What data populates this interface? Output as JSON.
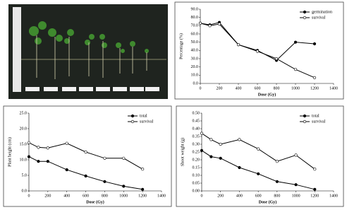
{
  "chart_data": [
    {
      "type": "line",
      "ylabel": "Percentage (%)",
      "xlabel": "Dose (Gy)",
      "x": [
        0,
        100,
        200,
        400,
        600,
        800,
        1000,
        1200
      ],
      "series": [
        {
          "name": "germination",
          "color": "#000000",
          "marker": "filled",
          "values": [
            73,
            71,
            74,
            47,
            40,
            28,
            50,
            48
          ]
        },
        {
          "name": "survival",
          "color": "#000000",
          "marker": "open",
          "values": [
            73,
            70,
            72,
            47,
            39,
            30,
            17,
            7
          ]
        }
      ],
      "xlim": [
        0,
        1400
      ],
      "xticks": [
        0,
        200,
        400,
        600,
        800,
        1000,
        1200,
        1400
      ],
      "ylim": [
        0,
        90
      ],
      "yticks": [
        {
          "value": 0,
          "label": "0.0"
        },
        {
          "value": 10,
          "label": "10.0"
        },
        {
          "value": 20,
          "label": "20.0"
        },
        {
          "value": 30,
          "label": "30.0"
        },
        {
          "value": 40,
          "label": "40.0"
        },
        {
          "value": 50,
          "label": "50.0"
        },
        {
          "value": 60,
          "label": "60.0"
        },
        {
          "value": 70,
          "label": "70.0"
        },
        {
          "value": 80,
          "label": "80.0"
        },
        {
          "value": 90,
          "label": "90.0"
        }
      ],
      "legend": "upper right"
    },
    {
      "type": "line",
      "ylabel": "Plant height (cm)",
      "xlabel": "Dose (Gy)",
      "x": [
        0,
        100,
        200,
        400,
        600,
        800,
        1000,
        1200
      ],
      "series": [
        {
          "name": "total",
          "color": "#000000",
          "marker": "filled",
          "values": [
            11,
            9.5,
            9.5,
            6.8,
            4.8,
            3,
            1.5,
            0.5
          ]
        },
        {
          "name": "survival",
          "color": "#000000",
          "marker": "open",
          "values": [
            15.5,
            14,
            13.8,
            15.3,
            12.5,
            10.5,
            10.5,
            7
          ]
        }
      ],
      "xlim": [
        0,
        1400
      ],
      "xticks": [
        0,
        200,
        400,
        600,
        800,
        1000,
        1200,
        1400
      ],
      "ylim": [
        0,
        25
      ],
      "yticks": [
        {
          "value": 0,
          "label": "0.0"
        },
        {
          "value": 5,
          "label": "5.0"
        },
        {
          "value": 10,
          "label": "10.0"
        },
        {
          "value": 15,
          "label": "15.0"
        },
        {
          "value": 20,
          "label": "20.0"
        },
        {
          "value": 25,
          "label": "25.0"
        }
      ],
      "legend": "upper right"
    },
    {
      "type": "line",
      "ylabel": "Shoot weight (g)",
      "xlabel": "Dose (Gy)",
      "x": [
        0,
        100,
        200,
        400,
        600,
        800,
        1000,
        1200
      ],
      "series": [
        {
          "name": "total",
          "color": "#000000",
          "marker": "filled",
          "values": [
            0.26,
            0.22,
            0.21,
            0.15,
            0.11,
            0.06,
            0.04,
            0.01
          ]
        },
        {
          "name": "survival",
          "color": "#000000",
          "marker": "open",
          "values": [
            0.37,
            0.33,
            0.3,
            0.33,
            0.27,
            0.19,
            0.23,
            0.14
          ]
        }
      ],
      "xlim": [
        0,
        1400
      ],
      "xticks": [
        0,
        200,
        400,
        600,
        800,
        1000,
        1200,
        1400
      ],
      "ylim": [
        0,
        0.5
      ],
      "yticks": [
        {
          "value": 0,
          "label": "0.00"
        },
        {
          "value": 0.05,
          "label": "0.05"
        },
        {
          "value": 0.1,
          "label": "0.10"
        },
        {
          "value": 0.15,
          "label": "0.15"
        },
        {
          "value": 0.2,
          "label": "0.20"
        },
        {
          "value": 0.25,
          "label": "0.25"
        },
        {
          "value": 0.3,
          "label": "0.30"
        },
        {
          "value": 0.35,
          "label": "0.35"
        },
        {
          "value": 0.4,
          "label": "0.40"
        },
        {
          "value": 0.45,
          "label": "0.45"
        },
        {
          "value": 0.5,
          "label": "0.50"
        }
      ],
      "legend": "upper right"
    }
  ]
}
